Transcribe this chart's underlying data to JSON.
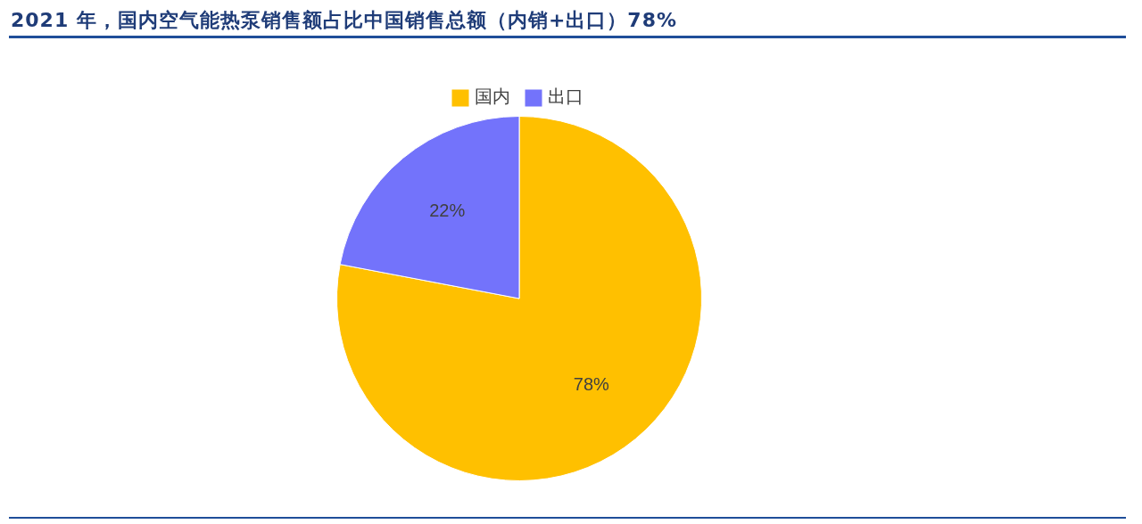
{
  "chart_data": {
    "type": "pie",
    "title": "2021 年，国内空气能热泵销售额占比中国销售总额（内销+出口）78%",
    "categories": [
      "国内",
      "出口"
    ],
    "values": [
      78,
      22
    ],
    "colors": [
      "#ffc000",
      "#7373fb"
    ],
    "value_labels": [
      "78%",
      "22%"
    ],
    "legend": "top"
  }
}
